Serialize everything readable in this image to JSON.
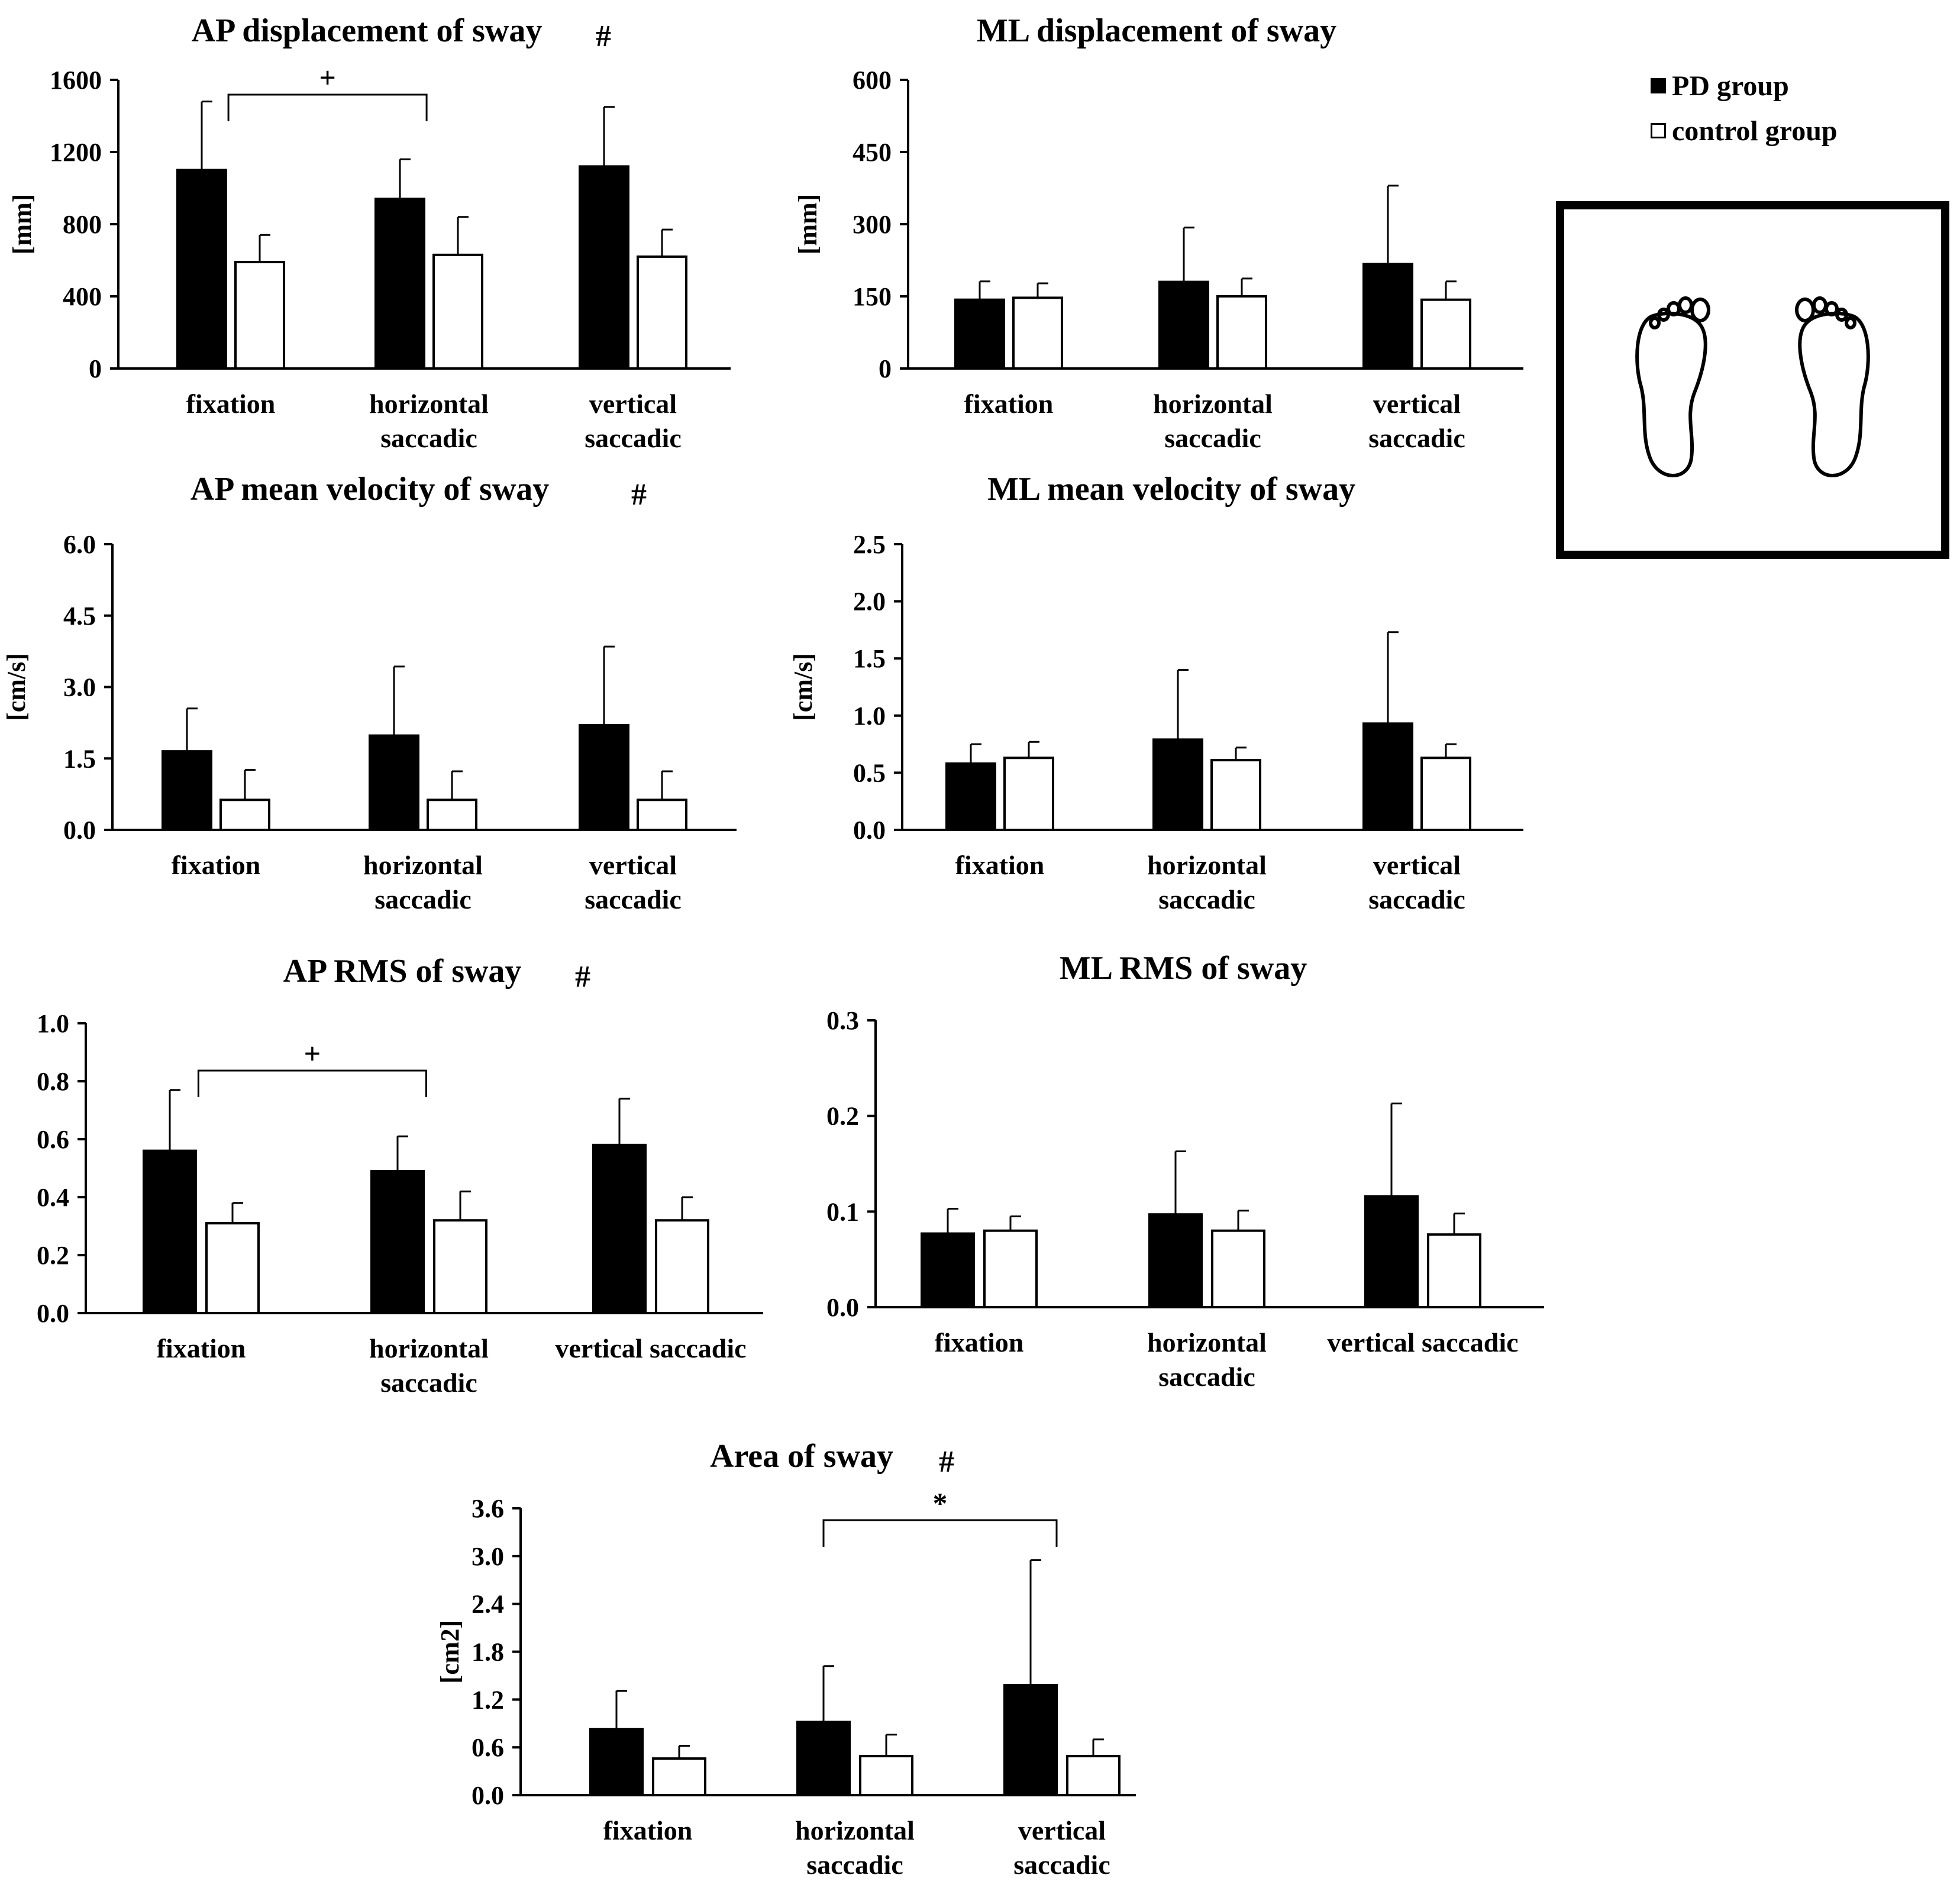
{
  "legend": {
    "pd_label": "PD group",
    "control_label": "control group",
    "pd_color": "#000000",
    "control_color": "#ffffff"
  },
  "illustration": {
    "description_icon": "feet-stance-icon"
  },
  "chart_data": [
    {
      "type": "bar",
      "title": "AP displacement of sway",
      "title_marker": "#",
      "ylabel": "[mm]",
      "ylim": [
        0,
        1600
      ],
      "yticks": [
        "0",
        "400",
        "800",
        "1200",
        "1600"
      ],
      "categories": [
        "fixation",
        "horizontal saccadic",
        "vertical saccadic"
      ],
      "series": [
        {
          "name": "PD group",
          "values": [
            1100,
            940,
            1120
          ],
          "errors": [
            380,
            220,
            330
          ]
        },
        {
          "name": "control group",
          "values": [
            590,
            630,
            620
          ],
          "errors": [
            150,
            210,
            150
          ]
        }
      ],
      "annotations": [
        {
          "label": "+",
          "from": 0,
          "to": 1
        }
      ]
    },
    {
      "type": "bar",
      "title": "ML displacement of sway",
      "title_marker": "",
      "ylabel": "[mm]",
      "ylim": [
        0,
        600
      ],
      "yticks": [
        "0",
        "150",
        "300",
        "450",
        "600"
      ],
      "categories": [
        "fixation",
        "horizontal saccadic",
        "vertical saccadic"
      ],
      "series": [
        {
          "name": "PD group",
          "values": [
            143,
            180,
            217
          ],
          "errors": [
            38,
            113,
            163
          ]
        },
        {
          "name": "control group",
          "values": [
            147,
            150,
            143
          ],
          "errors": [
            30,
            37,
            38
          ]
        }
      ],
      "annotations": []
    },
    {
      "type": "bar",
      "title": "AP mean velocity of sway",
      "title_marker": "#",
      "ylabel": "[cm/s]",
      "ylim": [
        0,
        6
      ],
      "yticks": [
        "0.0",
        "1.5",
        "3.0",
        "4.5",
        "6.0"
      ],
      "categories": [
        "fixation",
        "horizontal saccadic",
        "vertical saccadic"
      ],
      "series": [
        {
          "name": "PD group",
          "values": [
            1.65,
            1.98,
            2.2
          ],
          "errors": [
            0.9,
            1.45,
            1.65
          ]
        },
        {
          "name": "control group",
          "values": [
            0.63,
            0.63,
            0.63
          ],
          "errors": [
            0.63,
            0.6,
            0.6
          ]
        }
      ],
      "annotations": []
    },
    {
      "type": "bar",
      "title": "ML mean velocity of sway",
      "title_marker": "",
      "ylabel": "[cm/s]",
      "ylim": [
        0,
        2.5
      ],
      "yticks": [
        "0.0",
        "0.5",
        "1.0",
        "1.5",
        "2.0",
        "2.5"
      ],
      "categories": [
        "fixation",
        "horizontal saccadic",
        "vertical saccadic"
      ],
      "series": [
        {
          "name": "PD group",
          "values": [
            0.58,
            0.79,
            0.93
          ],
          "errors": [
            0.17,
            0.61,
            0.8
          ]
        },
        {
          "name": "control group",
          "values": [
            0.63,
            0.61,
            0.63
          ],
          "errors": [
            0.14,
            0.11,
            0.12
          ]
        }
      ],
      "annotations": []
    },
    {
      "type": "bar",
      "title": "AP RMS of sway",
      "title_marker": "#",
      "ylabel": "",
      "ylim": [
        0,
        1
      ],
      "yticks": [
        "0.0",
        "0.2",
        "0.4",
        "0.6",
        "0.8",
        "1.0"
      ],
      "categories": [
        "fixation",
        "horizontal saccadic",
        "vertical saccadic"
      ],
      "series": [
        {
          "name": "PD group",
          "values": [
            0.56,
            0.49,
            0.58
          ],
          "errors": [
            0.21,
            0.12,
            0.16
          ]
        },
        {
          "name": "control group",
          "values": [
            0.31,
            0.32,
            0.32
          ],
          "errors": [
            0.07,
            0.1,
            0.08
          ]
        }
      ],
      "annotations": [
        {
          "label": "+",
          "from": 0,
          "to": 1
        }
      ]
    },
    {
      "type": "bar",
      "title": "ML RMS of sway",
      "title_marker": "",
      "ylabel": "",
      "ylim": [
        0,
        0.3
      ],
      "yticks": [
        "0.0",
        "0.1",
        "0.2",
        "0.3"
      ],
      "categories": [
        "fixation",
        "horizontal saccadic",
        "vertical saccadic"
      ],
      "series": [
        {
          "name": "PD group",
          "values": [
            0.077,
            0.097,
            0.116
          ],
          "errors": [
            0.026,
            0.066,
            0.097
          ]
        },
        {
          "name": "control group",
          "values": [
            0.08,
            0.08,
            0.076
          ],
          "errors": [
            0.015,
            0.021,
            0.022
          ]
        }
      ],
      "annotations": []
    },
    {
      "type": "bar",
      "title": "Area of sway",
      "title_marker": "#",
      "ylabel": "[cm2]",
      "ylim": [
        0,
        3.6
      ],
      "yticks": [
        "0.0",
        "0.6",
        "1.2",
        "1.8",
        "2.4",
        "3.0",
        "3.6"
      ],
      "categories": [
        "fixation",
        "horizontal saccadic",
        "vertical saccadic"
      ],
      "series": [
        {
          "name": "PD group",
          "values": [
            0.83,
            0.92,
            1.38
          ],
          "errors": [
            0.48,
            0.7,
            1.57
          ]
        },
        {
          "name": "control group",
          "values": [
            0.46,
            0.49,
            0.49
          ],
          "errors": [
            0.16,
            0.27,
            0.21
          ]
        }
      ],
      "annotations": [
        {
          "label": "*",
          "from": 1,
          "to": 2
        }
      ]
    }
  ]
}
